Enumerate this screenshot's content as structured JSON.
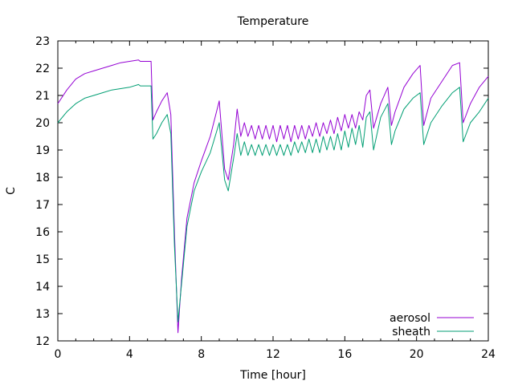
{
  "chart_data": {
    "type": "line",
    "title": "Temperature",
    "xlabel": "Time [hour]",
    "ylabel": "C",
    "xlim": [
      0,
      24
    ],
    "ylim": [
      12,
      23
    ],
    "xticks": [
      0,
      4,
      8,
      12,
      16,
      20,
      24
    ],
    "yticks": [
      12,
      13,
      14,
      15,
      16,
      17,
      18,
      19,
      20,
      21,
      22,
      23
    ],
    "grid": false,
    "legend_position": "bottom-right",
    "series": [
      {
        "name": "aerosol",
        "color": "#9400d3",
        "x": [
          0,
          0.5,
          1,
          1.5,
          2,
          2.5,
          3,
          3.5,
          4,
          4.5,
          4.6,
          4.8,
          5.0,
          5.2,
          5.3,
          5.5,
          5.8,
          6.1,
          6.3,
          6.5,
          6.7,
          6.9,
          7.2,
          7.6,
          8.0,
          8.5,
          9.0,
          9.3,
          9.5,
          9.8,
          10.0,
          10.2,
          10.4,
          10.6,
          10.8,
          11.0,
          11.2,
          11.4,
          11.6,
          11.8,
          12.0,
          12.2,
          12.4,
          12.6,
          12.8,
          13.0,
          13.2,
          13.4,
          13.6,
          13.8,
          14.0,
          14.2,
          14.4,
          14.6,
          14.8,
          15.0,
          15.2,
          15.4,
          15.6,
          15.8,
          16.0,
          16.2,
          16.4,
          16.6,
          16.8,
          17.0,
          17.2,
          17.4,
          17.6,
          18.0,
          18.4,
          18.6,
          18.8,
          19.3,
          19.8,
          20.2,
          20.4,
          20.8,
          21.4,
          22.0,
          22.4,
          22.6,
          23.0,
          23.5,
          24.0
        ],
        "y": [
          20.7,
          21.2,
          21.6,
          21.8,
          21.9,
          22.0,
          22.1,
          22.2,
          22.25,
          22.3,
          22.25,
          22.25,
          22.25,
          22.25,
          20.1,
          20.4,
          20.8,
          21.1,
          20.3,
          16.0,
          12.3,
          14.3,
          16.5,
          17.8,
          18.6,
          19.5,
          20.8,
          18.3,
          17.9,
          19.2,
          20.5,
          19.5,
          20.0,
          19.5,
          19.9,
          19.4,
          19.9,
          19.4,
          19.9,
          19.4,
          19.9,
          19.3,
          19.9,
          19.4,
          19.9,
          19.3,
          19.9,
          19.4,
          19.9,
          19.4,
          19.9,
          19.5,
          20.0,
          19.5,
          20.0,
          19.6,
          20.1,
          19.6,
          20.2,
          19.7,
          20.3,
          19.8,
          20.3,
          19.8,
          20.4,
          20.1,
          21.0,
          21.2,
          19.8,
          20.7,
          21.3,
          19.9,
          20.4,
          21.3,
          21.8,
          22.1,
          19.9,
          20.9,
          21.5,
          22.1,
          22.2,
          20.0,
          20.7,
          21.3,
          21.7
        ]
      },
      {
        "name": "sheath",
        "color": "#009e73",
        "x": [
          0,
          0.5,
          1,
          1.5,
          2,
          2.5,
          3,
          3.5,
          4,
          4.5,
          4.6,
          4.8,
          5.0,
          5.2,
          5.3,
          5.5,
          5.8,
          6.1,
          6.3,
          6.5,
          6.7,
          6.9,
          7.2,
          7.6,
          8.0,
          8.5,
          9.0,
          9.3,
          9.5,
          9.8,
          10.0,
          10.2,
          10.4,
          10.6,
          10.8,
          11.0,
          11.2,
          11.4,
          11.6,
          11.8,
          12.0,
          12.2,
          12.4,
          12.6,
          12.8,
          13.0,
          13.2,
          13.4,
          13.6,
          13.8,
          14.0,
          14.2,
          14.4,
          14.6,
          14.8,
          15.0,
          15.2,
          15.4,
          15.6,
          15.8,
          16.0,
          16.2,
          16.4,
          16.6,
          16.8,
          17.0,
          17.2,
          17.4,
          17.6,
          18.0,
          18.4,
          18.6,
          18.8,
          19.3,
          19.8,
          20.2,
          20.4,
          20.8,
          21.4,
          22.0,
          22.4,
          22.6,
          23.0,
          23.5,
          24.0
        ],
        "y": [
          20.0,
          20.4,
          20.7,
          20.9,
          21.0,
          21.1,
          21.2,
          21.25,
          21.3,
          21.4,
          21.35,
          21.35,
          21.35,
          21.35,
          19.4,
          19.6,
          20.0,
          20.3,
          19.6,
          15.5,
          12.7,
          14.1,
          16.2,
          17.5,
          18.2,
          18.9,
          20.0,
          17.9,
          17.5,
          18.7,
          19.6,
          18.8,
          19.3,
          18.8,
          19.2,
          18.8,
          19.2,
          18.8,
          19.2,
          18.8,
          19.2,
          18.8,
          19.2,
          18.8,
          19.2,
          18.8,
          19.3,
          18.9,
          19.3,
          18.9,
          19.4,
          18.9,
          19.4,
          18.9,
          19.5,
          19.0,
          19.5,
          19.0,
          19.6,
          19.0,
          19.7,
          19.1,
          19.8,
          19.2,
          19.9,
          19.1,
          20.2,
          20.4,
          19.0,
          20.2,
          20.7,
          19.2,
          19.7,
          20.5,
          20.9,
          21.1,
          19.2,
          20.0,
          20.6,
          21.1,
          21.3,
          19.3,
          20.0,
          20.4,
          20.9
        ]
      }
    ]
  }
}
